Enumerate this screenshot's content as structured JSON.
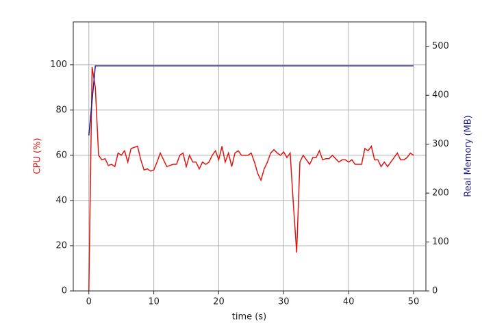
{
  "chart_data": {
    "type": "line",
    "xlabel": "time (s)",
    "ylabel": "CPU (%)",
    "y2label": "Real Memory (MB)",
    "xlim": [
      -2.4,
      51.9
    ],
    "xticks": [
      0,
      10,
      20,
      30,
      40,
      50
    ],
    "ylim": [
      0,
      119
    ],
    "yticks": [
      0,
      20,
      40,
      60,
      80,
      100
    ],
    "y2lim": [
      0,
      550
    ],
    "y2ticks": [
      0,
      100,
      200,
      300,
      400,
      500
    ],
    "grid": true,
    "series": [
      {
        "name": "CPU (%)",
        "color": "#e0140e",
        "axis": "y",
        "x": [
          0,
          0.5,
          1,
          1.5,
          2,
          2.5,
          3,
          3.5,
          4,
          4.5,
          5,
          5.5,
          6,
          6.5,
          7,
          7.5,
          8,
          8.5,
          9,
          9.5,
          10,
          10.5,
          11,
          11.5,
          12,
          12.5,
          13,
          13.5,
          14,
          14.5,
          15,
          15.5,
          16,
          16.5,
          17,
          17.5,
          18,
          18.5,
          19,
          19.5,
          20,
          20.5,
          21,
          21.5,
          22,
          22.5,
          23,
          23.5,
          24,
          24.5,
          25,
          25.5,
          26,
          26.5,
          27,
          27.5,
          28,
          28.5,
          29,
          29.5,
          30,
          30.5,
          31,
          31.5,
          32,
          32.5,
          33,
          33.5,
          34,
          34.5,
          35,
          35.5,
          36,
          36.5,
          37,
          37.5,
          38,
          38.5,
          39,
          39.5,
          40,
          40.5,
          41,
          41.5,
          42,
          42.5,
          43,
          43.5,
          44,
          44.5,
          45,
          45.5,
          46,
          46.5,
          47,
          47.5,
          48,
          48.5,
          49,
          49.5,
          50
        ],
        "values": [
          0,
          99,
          90,
          60,
          58,
          58.5,
          55.5,
          56,
          55,
          61,
          60,
          62,
          57,
          63,
          63.5,
          64,
          58,
          53.5,
          54,
          53,
          53.5,
          57,
          61,
          58,
          55,
          55.5,
          56,
          56,
          60,
          61,
          55,
          60,
          57,
          57,
          54,
          57,
          56,
          57,
          60,
          62,
          58,
          64,
          57,
          61,
          55,
          61,
          62,
          60,
          60,
          60,
          61,
          57,
          52,
          49,
          54,
          57,
          61,
          62.5,
          61,
          60,
          61.5,
          59,
          61,
          38,
          17,
          57,
          60,
          58,
          56,
          59,
          59,
          62,
          58,
          58.5,
          58.5,
          60,
          58.5,
          57,
          58,
          58,
          57,
          58,
          56,
          56,
          56,
          63,
          62,
          64,
          58,
          58,
          55,
          57,
          55,
          57,
          59,
          61,
          58,
          58,
          59,
          61,
          60
        ]
      },
      {
        "name": "Real Memory (MB)",
        "color": "#1c1c8e",
        "axis": "y2",
        "x": [
          0,
          1,
          50
        ],
        "values": [
          318,
          460,
          460
        ]
      }
    ]
  }
}
